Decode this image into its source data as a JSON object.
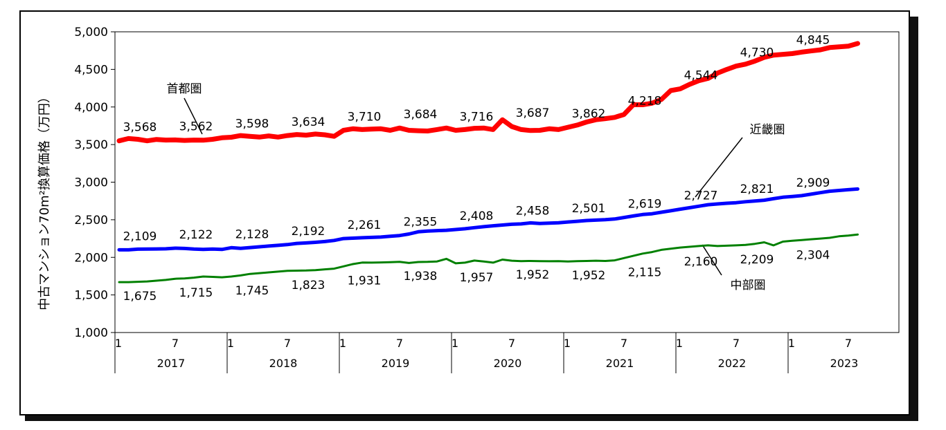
{
  "chart_data": {
    "type": "line",
    "ylabel": "中古マンション70m²換算価格（万円）",
    "ylim": [
      1000,
      5000
    ],
    "yticks": [
      "1,000",
      "1,500",
      "2,000",
      "2,500",
      "3,000",
      "3,500",
      "4,000",
      "4,500",
      "5,000"
    ],
    "month_ticks": [
      "1",
      "7"
    ],
    "years": [
      "2017",
      "2018",
      "2019",
      "2020",
      "2021",
      "2022",
      "2023"
    ],
    "grid": false,
    "series": [
      {
        "name": "首都圏",
        "color": "#ff0000",
        "values": [
          3550,
          3580,
          3570,
          3550,
          3568,
          3560,
          3562,
          3555,
          3560,
          3558,
          3570,
          3590,
          3598,
          3620,
          3610,
          3600,
          3615,
          3600,
          3620,
          3634,
          3625,
          3640,
          3630,
          3610,
          3690,
          3710,
          3700,
          3705,
          3710,
          3690,
          3720,
          3690,
          3684,
          3680,
          3700,
          3720,
          3690,
          3700,
          3716,
          3720,
          3700,
          3830,
          3740,
          3700,
          3687,
          3690,
          3710,
          3700,
          3730,
          3760,
          3800,
          3830,
          3845,
          3862,
          3900,
          4030,
          4030,
          4050,
          4100,
          4218,
          4240,
          4300,
          4350,
          4380,
          4450,
          4500,
          4544,
          4570,
          4610,
          4660,
          4690,
          4700,
          4710,
          4730,
          4745,
          4760,
          4790,
          4800,
          4810,
          4845
        ]
      },
      {
        "name": "近畿圏",
        "color": "#0000ff",
        "values": [
          2100,
          2100,
          2109,
          2110,
          2112,
          2114,
          2122,
          2118,
          2110,
          2105,
          2110,
          2105,
          2128,
          2120,
          2130,
          2140,
          2150,
          2160,
          2170,
          2185,
          2192,
          2200,
          2210,
          2225,
          2250,
          2255,
          2261,
          2265,
          2270,
          2280,
          2290,
          2310,
          2340,
          2350,
          2355,
          2360,
          2370,
          2380,
          2395,
          2408,
          2420,
          2430,
          2440,
          2445,
          2458,
          2450,
          2455,
          2460,
          2470,
          2480,
          2490,
          2495,
          2501,
          2510,
          2530,
          2550,
          2570,
          2580,
          2600,
          2619,
          2640,
          2660,
          2680,
          2700,
          2710,
          2720,
          2727,
          2740,
          2750,
          2760,
          2780,
          2800,
          2810,
          2821,
          2840,
          2860,
          2880,
          2890,
          2900,
          2909
        ]
      },
      {
        "name": "中部圏",
        "color": "#008000",
        "values": [
          1670,
          1670,
          1675,
          1680,
          1690,
          1700,
          1715,
          1720,
          1730,
          1745,
          1740,
          1735,
          1745,
          1760,
          1780,
          1790,
          1800,
          1810,
          1820,
          1823,
          1825,
          1830,
          1840,
          1850,
          1880,
          1910,
          1931,
          1930,
          1932,
          1935,
          1940,
          1925,
          1938,
          1940,
          1945,
          1980,
          1920,
          1930,
          1957,
          1945,
          1930,
          1970,
          1955,
          1950,
          1952,
          1950,
          1948,
          1950,
          1945,
          1950,
          1952,
          1955,
          1952,
          1960,
          1990,
          2020,
          2050,
          2070,
          2100,
          2115,
          2130,
          2140,
          2150,
          2160,
          2150,
          2155,
          2160,
          2165,
          2180,
          2200,
          2160,
          2209,
          2220,
          2230,
          2240,
          2250,
          2260,
          2280,
          2290,
          2304
        ]
      }
    ],
    "point_labels": [
      {
        "series": 0,
        "index": 0,
        "text": "3,568"
      },
      {
        "series": 0,
        "index": 6,
        "text": "3,562"
      },
      {
        "series": 0,
        "index": 12,
        "text": "3,598"
      },
      {
        "series": 0,
        "index": 18,
        "text": "3,634"
      },
      {
        "series": 0,
        "index": 24,
        "text": "3,710"
      },
      {
        "series": 0,
        "index": 30,
        "text": "3,684"
      },
      {
        "series": 0,
        "index": 36,
        "text": "3,716"
      },
      {
        "series": 0,
        "index": 42,
        "text": "3,687"
      },
      {
        "series": 0,
        "index": 48,
        "text": "3,862"
      },
      {
        "series": 0,
        "index": 54,
        "text": "4,218"
      },
      {
        "series": 0,
        "index": 60,
        "text": "4,544"
      },
      {
        "series": 0,
        "index": 66,
        "text": "4,730"
      },
      {
        "series": 0,
        "index": 72,
        "text": "4,845"
      },
      {
        "series": 1,
        "index": 0,
        "text": "2,109"
      },
      {
        "series": 1,
        "index": 6,
        "text": "2,122"
      },
      {
        "series": 1,
        "index": 12,
        "text": "2,128"
      },
      {
        "series": 1,
        "index": 18,
        "text": "2,192"
      },
      {
        "series": 1,
        "index": 24,
        "text": "2,261"
      },
      {
        "series": 1,
        "index": 30,
        "text": "2,355"
      },
      {
        "series": 1,
        "index": 36,
        "text": "2,408"
      },
      {
        "series": 1,
        "index": 42,
        "text": "2,458"
      },
      {
        "series": 1,
        "index": 48,
        "text": "2,501"
      },
      {
        "series": 1,
        "index": 54,
        "text": "2,619"
      },
      {
        "series": 1,
        "index": 60,
        "text": "2,727"
      },
      {
        "series": 1,
        "index": 66,
        "text": "2,821"
      },
      {
        "series": 1,
        "index": 72,
        "text": "2,909"
      },
      {
        "series": 2,
        "index": 0,
        "text": "1,675"
      },
      {
        "series": 2,
        "index": 6,
        "text": "1,715"
      },
      {
        "series": 2,
        "index": 12,
        "text": "1,745"
      },
      {
        "series": 2,
        "index": 18,
        "text": "1,823"
      },
      {
        "series": 2,
        "index": 24,
        "text": "1,931"
      },
      {
        "series": 2,
        "index": 30,
        "text": "1,938"
      },
      {
        "series": 2,
        "index": 36,
        "text": "1,957"
      },
      {
        "series": 2,
        "index": 42,
        "text": "1,952"
      },
      {
        "series": 2,
        "index": 48,
        "text": "1,952"
      },
      {
        "series": 2,
        "index": 54,
        "text": "2,115"
      },
      {
        "series": 2,
        "index": 60,
        "text": "2,160"
      },
      {
        "series": 2,
        "index": 66,
        "text": "2,209"
      },
      {
        "series": 2,
        "index": 72,
        "text": "2,304"
      }
    ]
  }
}
